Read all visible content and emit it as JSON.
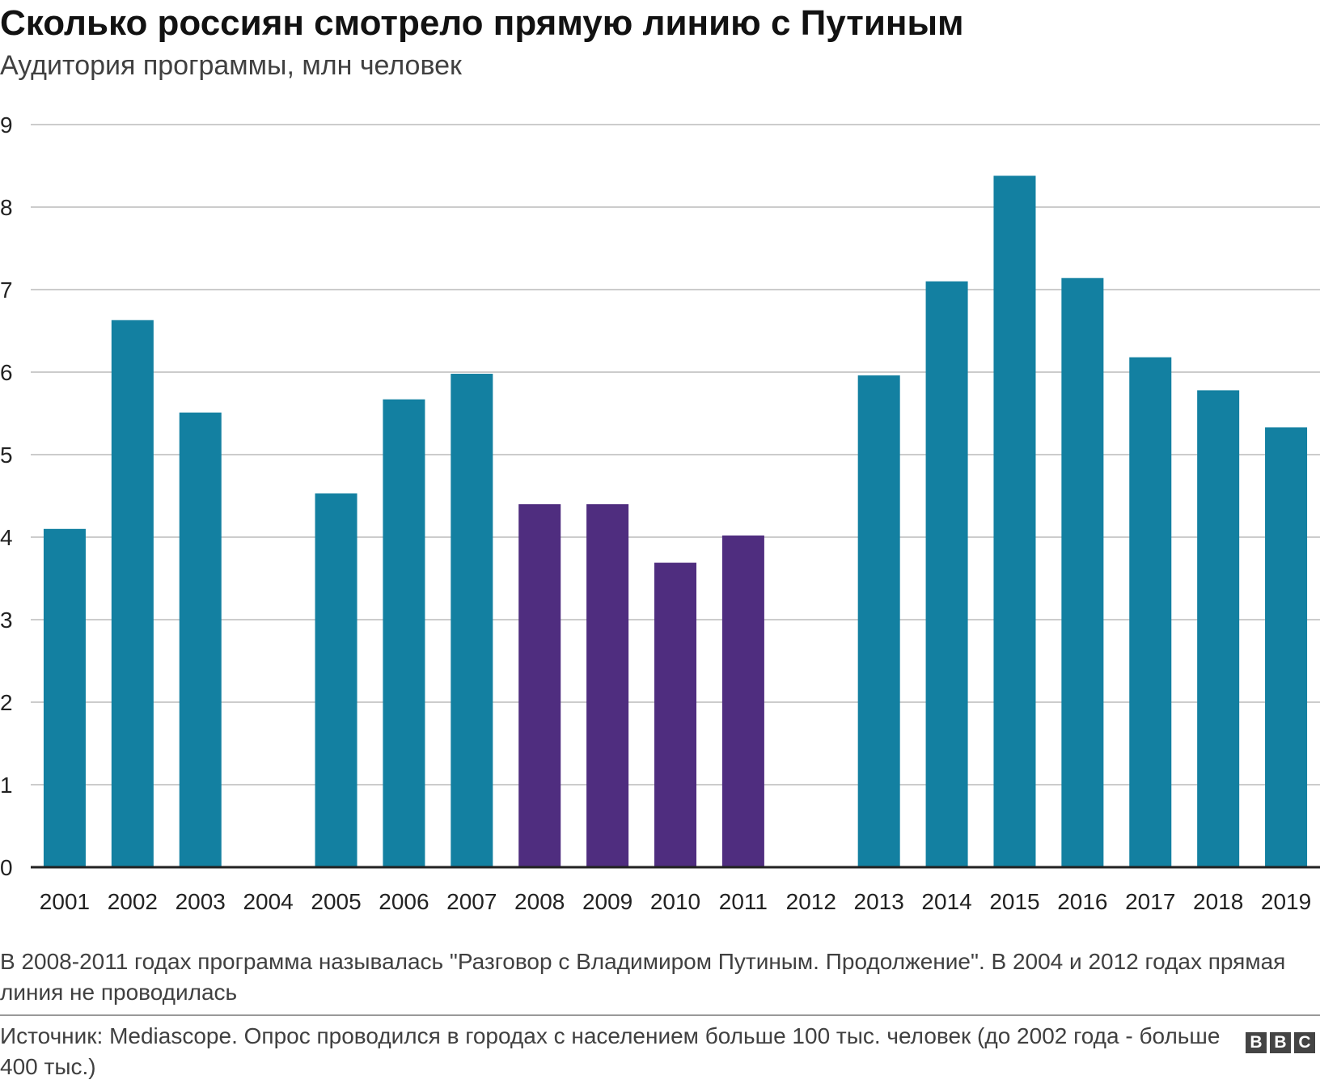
{
  "title": "Сколько россиян смотрело прямую линию с Путиным",
  "subtitle": "Аудитория программы, млн человек",
  "colors": {
    "primary": "#1380A1",
    "highlight": "#4F2D7F",
    "grid": "#cccccc",
    "axis": "#222222"
  },
  "chart_data": {
    "type": "bar",
    "categories": [
      "2001",
      "2002",
      "2003",
      "2004",
      "2005",
      "2006",
      "2007",
      "2008",
      "2009",
      "2010",
      "2011",
      "2012",
      "2013",
      "2014",
      "2015",
      "2016",
      "2017",
      "2018",
      "2019"
    ],
    "values": [
      4.1,
      6.63,
      5.51,
      null,
      4.53,
      5.67,
      5.98,
      4.4,
      4.4,
      3.69,
      4.02,
      null,
      5.96,
      7.1,
      8.38,
      7.14,
      6.18,
      5.78,
      5.33
    ],
    "highlighted": [
      "2008",
      "2009",
      "2010",
      "2011"
    ],
    "yticks": [
      0,
      1,
      2,
      3,
      4,
      5,
      6,
      7,
      8,
      9
    ],
    "ylim": [
      0,
      9
    ],
    "grid": true,
    "xlabel": "",
    "ylabel": ""
  },
  "note": "В 2008-2011 годах программа называлась \"Разговор с Владимиром Путиным. Продолжение\". В 2004 и 2012 годах прямая линия не проводилась",
  "source": "Источник: Mediascope. Опрос проводился в городах с населением больше 100 тыс. человек (до 2002 года - больше 400 тыс.)",
  "logo": {
    "letters": [
      "B",
      "B",
      "C"
    ]
  }
}
